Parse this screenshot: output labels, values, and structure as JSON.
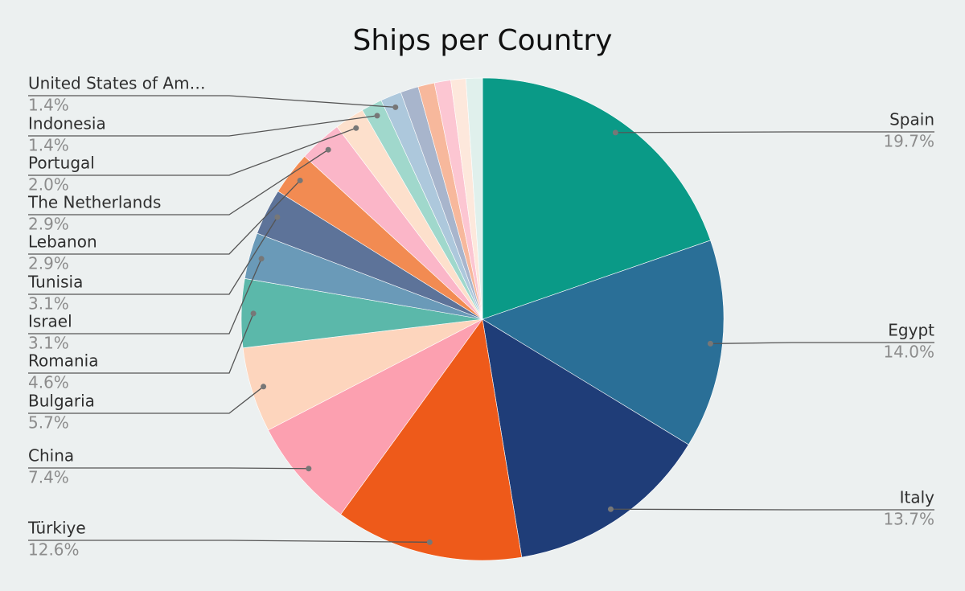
{
  "chart_data": {
    "type": "pie",
    "title": "Ships per Country",
    "categories": [
      "Spain",
      "Egypt",
      "Italy",
      "Türkiye",
      "China",
      "Bulgaria",
      "Romania",
      "Israel",
      "Tunisia",
      "Lebanon",
      "The Netherlands",
      "Portugal",
      "Indonesia",
      "United States of Am…",
      null,
      null,
      null,
      null,
      null
    ],
    "values": [
      19.7,
      14.0,
      13.7,
      12.6,
      7.4,
      5.7,
      4.6,
      3.1,
      3.1,
      2.9,
      2.9,
      2.0,
      1.4,
      1.4,
      1.2,
      1.1,
      1.1,
      1.0,
      1.1
    ],
    "value_labels": [
      "19.7%",
      "14.0%",
      "13.7%",
      "12.6%",
      "7.4%",
      "5.7%",
      "4.6%",
      "3.1%",
      "3.1%",
      "2.9%",
      "2.9%",
      "2.0%",
      "1.4%",
      "1.4%",
      null,
      null,
      null,
      null,
      null
    ],
    "colors": [
      "#0a9a87",
      "#2a6f97",
      "#1f3d78",
      "#ee5a1a",
      "#fca0b0",
      "#fdd5bd",
      "#5bb8aa",
      "#6a9ab8",
      "#5d7399",
      "#f28b52",
      "#fbb6c8",
      "#fde0cc",
      "#a0d8cc",
      "#adc8dc",
      "#a8b5cc",
      "#f7b89c",
      "#fcc6d2",
      "#fde8dc",
      "#e0f0ec"
    ]
  }
}
